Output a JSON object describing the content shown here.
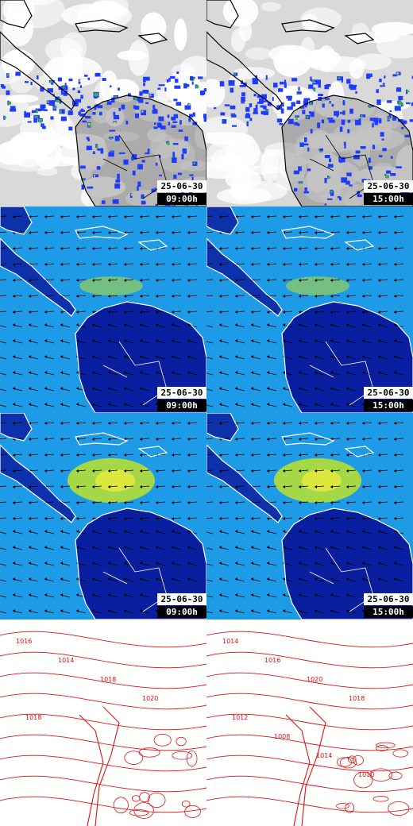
{
  "rows": [
    {
      "type": "satellite",
      "panels": [
        {
          "date": "25-06-30",
          "time": "09:00h"
        },
        {
          "date": "25-06-30",
          "time": "15:00h"
        }
      ]
    },
    {
      "type": "wind-low",
      "panels": [
        {
          "date": "25-06-30",
          "time": "09:00h"
        },
        {
          "date": "25-06-30",
          "time": "15:00h"
        }
      ]
    },
    {
      "type": "wind-high",
      "panels": [
        {
          "date": "25-06-30",
          "time": "09:00h"
        },
        {
          "date": "25-06-30",
          "time": "15:00h"
        }
      ]
    },
    {
      "type": "pressure",
      "panels": [
        {
          "isobar_labels": [
            "1016",
            "1014",
            "1018",
            "1020",
            "1018"
          ]
        },
        {
          "isobar_labels": [
            "1014",
            "1016",
            "1020",
            "1018",
            "1012",
            "1008",
            "1014",
            "1010"
          ]
        }
      ]
    }
  ],
  "colors": {
    "satellite_base": "#d9d9d9",
    "cloud_blue": "#1e3cff",
    "cloud_green": "#3cb43c",
    "cloud_yellow": "#f0e61e",
    "wind_ocean": "#1e9be6",
    "wind_land": "#0a1ea0",
    "wind_strong": "#c8e61e",
    "coast": "#ffffff",
    "isobar": "#e01010"
  }
}
